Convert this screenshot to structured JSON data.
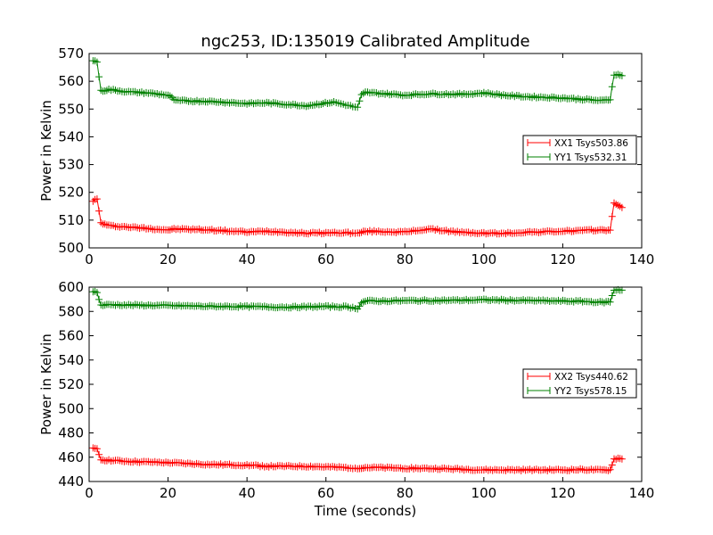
{
  "figure_title": "ngc253, ID:135019 Calibrated Amplitude",
  "colors": {
    "red": "#ff0000",
    "green": "#008000"
  },
  "chart_data": [
    {
      "type": "line",
      "title": "ngc253, ID:135019 Calibrated Amplitude",
      "xlabel": "",
      "ylabel": "Power in Kelvin",
      "xlim": [
        0,
        140
      ],
      "ylim": [
        500,
        570
      ],
      "xticks": [
        0,
        20,
        40,
        60,
        80,
        100,
        120,
        140
      ],
      "yticks": [
        500,
        510,
        520,
        530,
        540,
        550,
        560,
        570
      ],
      "grid": false,
      "legend_position": "right",
      "x_range_of_data": [
        1,
        135
      ],
      "series": [
        {
          "name": "XX1 Tsys503.86",
          "color": "#ff0000",
          "marker": "+",
          "x": [
            1,
            2,
            3,
            5,
            10,
            15,
            20,
            22,
            30,
            40,
            45,
            55,
            65,
            68,
            70,
            80,
            86,
            95,
            100,
            105,
            110,
            120,
            125,
            130,
            132,
            133,
            134,
            135
          ],
          "y": [
            517,
            517.5,
            509,
            508,
            507.5,
            507,
            506.5,
            506.8,
            506.5,
            505.7,
            506,
            505.3,
            505.5,
            505.2,
            506,
            505.7,
            506.8,
            505.5,
            505.3,
            505.2,
            505.6,
            506,
            506.2,
            506.5,
            506.3,
            516,
            515.5,
            514.5
          ]
        },
        {
          "name": "YY1 Tsys532.31",
          "color": "#008000",
          "marker": "+",
          "x": [
            1,
            2,
            3,
            5,
            10,
            15,
            20,
            22,
            30,
            40,
            45,
            55,
            62,
            65,
            68,
            69,
            70,
            80,
            86,
            95,
            100,
            105,
            110,
            120,
            125,
            130,
            132,
            133,
            134,
            135
          ],
          "y": [
            567.5,
            567,
            556.5,
            557,
            556.2,
            555.8,
            555,
            553,
            552.8,
            552,
            552.2,
            551.2,
            552.5,
            551.5,
            550.5,
            555,
            556,
            555,
            555.5,
            555.3,
            555.8,
            555,
            554.5,
            554,
            553.5,
            553,
            553.5,
            562.5,
            562.3,
            562
          ]
        }
      ]
    },
    {
      "type": "line",
      "title": "",
      "xlabel": "Time (seconds)",
      "ylabel": "Power in Kelvin",
      "xlim": [
        0,
        140
      ],
      "ylim": [
        440,
        600
      ],
      "xticks": [
        0,
        20,
        40,
        60,
        80,
        100,
        120,
        140
      ],
      "yticks": [
        440,
        460,
        480,
        500,
        520,
        540,
        560,
        580,
        600
      ],
      "grid": false,
      "legend_position": "right",
      "x_range_of_data": [
        1,
        135
      ],
      "series": [
        {
          "name": "XX2 Tsys440.62",
          "color": "#ff0000",
          "marker": "+",
          "x": [
            1,
            2,
            3,
            5,
            10,
            20,
            30,
            40,
            45,
            55,
            65,
            68,
            70,
            80,
            90,
            100,
            110,
            120,
            125,
            130,
            132,
            133,
            134,
            135
          ],
          "y": [
            467,
            466.5,
            458,
            457.5,
            456.5,
            455.5,
            454,
            453.5,
            452.5,
            452.5,
            451.5,
            451,
            451.5,
            451,
            450.5,
            449.5,
            449.5,
            449.5,
            449.8,
            449.3,
            449.5,
            458.5,
            459,
            458.5
          ]
        },
        {
          "name": "YY2 Tsys578.15",
          "color": "#008000",
          "marker": "+",
          "x": [
            1,
            2,
            3,
            5,
            10,
            20,
            30,
            40,
            50,
            60,
            65,
            68,
            69,
            70,
            80,
            90,
            100,
            110,
            120,
            125,
            130,
            132,
            133,
            134,
            135
          ],
          "y": [
            596.5,
            595.5,
            585,
            585.5,
            585.2,
            584.8,
            584.2,
            584,
            583.5,
            584,
            583.8,
            582.5,
            587,
            588.5,
            588.8,
            589,
            589.5,
            589,
            588.5,
            588.3,
            587.5,
            588,
            597.5,
            598,
            597.5
          ]
        }
      ]
    }
  ]
}
